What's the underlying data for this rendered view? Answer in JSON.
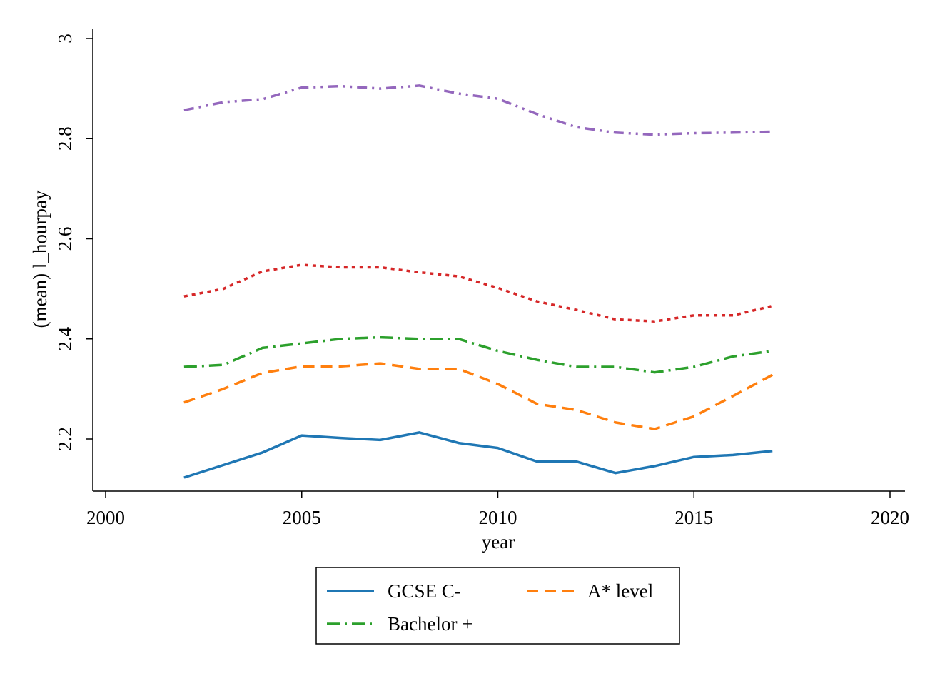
{
  "chart_data": {
    "type": "line",
    "title": "",
    "xlabel": "year",
    "ylabel": "(mean) l_hourpay",
    "xlim": [
      2000,
      2020
    ],
    "ylim": [
      2.1,
      3.0
    ],
    "xticks": [
      2000,
      2005,
      2010,
      2015,
      2020
    ],
    "yticks": [
      2.2,
      2.4,
      2.6,
      2.8,
      3.0
    ],
    "ytick_labels": [
      "2.2",
      "2.4",
      "2.6",
      "2.8",
      "3"
    ],
    "grid": false,
    "legend": "bottom",
    "x": [
      2002,
      2003,
      2004,
      2005,
      2006,
      2007,
      2008,
      2009,
      2010,
      2011,
      2012,
      2013,
      2014,
      2015,
      2016,
      2017
    ],
    "series": [
      {
        "name": "GCSE C-",
        "color": "#1f77b4",
        "dash": "solid",
        "values": [
          2.123,
          2.148,
          2.173,
          2.207,
          2.202,
          2.198,
          2.213,
          2.192,
          2.182,
          2.155,
          2.155,
          2.132,
          2.146,
          2.164,
          2.168,
          2.176
        ]
      },
      {
        "name": "A* level",
        "color": "#ff7f0e",
        "dash": "dash",
        "values": [
          2.273,
          2.3,
          2.332,
          2.345,
          2.345,
          2.351,
          2.34,
          2.34,
          2.31,
          2.27,
          2.258,
          2.233,
          2.22,
          2.245,
          2.286,
          2.328
        ]
      },
      {
        "name": "Bachelor +",
        "color": "#2ca02c",
        "dash": "dashdot",
        "values": [
          2.344,
          2.348,
          2.382,
          2.391,
          2.4,
          2.403,
          2.4,
          2.4,
          2.376,
          2.358,
          2.344,
          2.344,
          2.333,
          2.344,
          2.365,
          2.376
        ]
      },
      {
        "name": "",
        "color": "#d62728",
        "dash": "dot",
        "values": [
          2.485,
          2.5,
          2.535,
          2.548,
          2.543,
          2.543,
          2.533,
          2.525,
          2.502,
          2.475,
          2.458,
          2.439,
          2.435,
          2.447,
          2.447,
          2.466
        ]
      },
      {
        "name": "",
        "color": "#9467bd",
        "dash": "dashdotdot",
        "values": [
          2.857,
          2.873,
          2.879,
          2.902,
          2.905,
          2.9,
          2.906,
          2.89,
          2.88,
          2.849,
          2.823,
          2.812,
          2.808,
          2.811,
          2.812,
          2.814
        ]
      }
    ],
    "legend_items": [
      "GCSE C-",
      "A* level",
      "Bachelor +"
    ]
  }
}
